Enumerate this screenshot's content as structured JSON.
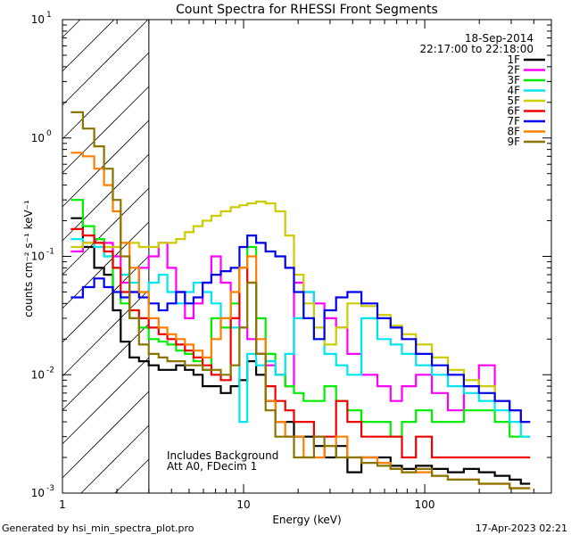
{
  "chart_data": {
    "type": "line",
    "title": "Count Spectra for RHESSI Front Segments",
    "xlabel": "Energy (keV)",
    "ylabel": "counts cm⁻² s⁻¹ keV⁻¹",
    "xscale": "log",
    "yscale": "log",
    "xlim": [
      1,
      500
    ],
    "ylim": [
      0.001,
      10
    ],
    "xticks": [
      {
        "value": 1,
        "label": "1"
      },
      {
        "value": 10,
        "label": "10"
      },
      {
        "value": 100,
        "label": "100"
      }
    ],
    "yticks": [
      {
        "value": 0.001,
        "base": "10",
        "exp": "-3"
      },
      {
        "value": 0.01,
        "base": "10",
        "exp": "-2"
      },
      {
        "value": 0.1,
        "base": "10",
        "exp": "-1"
      },
      {
        "value": 1,
        "base": "10",
        "exp": "0"
      },
      {
        "value": 10,
        "base": "10",
        "exp": "1"
      }
    ],
    "shaded_region": {
      "x": [
        1,
        3
      ]
    },
    "date": "18-Sep-2014",
    "time_range": "22:17:00 to 22:18:00",
    "legend_position": "top-right",
    "annotations": [
      "Includes Background",
      "Att A0, FDecim 1"
    ],
    "series": [
      {
        "name": "1F",
        "color": "#000000",
        "x": [
          1.2,
          1.4,
          1.6,
          1.8,
          2.0,
          2.2,
          2.5,
          2.8,
          3.2,
          3.6,
          4.0,
          4.5,
          5.0,
          5.6,
          6.3,
          7.0,
          8.0,
          9.0,
          10.0,
          11.0,
          12.5,
          14,
          16,
          18,
          20,
          23,
          26,
          30,
          35,
          40,
          50,
          60,
          70,
          80,
          100,
          120,
          150,
          180,
          220,
          270,
          320,
          360
        ],
        "values": [
          0.21,
          0.12,
          0.08,
          0.07,
          0.035,
          0.019,
          0.014,
          0.013,
          0.012,
          0.011,
          0.011,
          0.012,
          0.011,
          0.01,
          0.008,
          0.008,
          0.007,
          0.008,
          0.009,
          0.013,
          0.01,
          0.006,
          0.004,
          0.004,
          0.003,
          0.003,
          0.0025,
          0.002,
          0.0025,
          0.0015,
          0.002,
          0.002,
          0.0017,
          0.0016,
          0.0017,
          0.0016,
          0.0015,
          0.0016,
          0.0015,
          0.0014,
          0.0013,
          0.0012
        ]
      },
      {
        "name": "2F",
        "color": "#ff00ff",
        "x": [
          1.2,
          1.4,
          1.6,
          1.8,
          2.0,
          2.2,
          2.5,
          2.8,
          3.2,
          3.6,
          4.0,
          4.5,
          5.0,
          5.6,
          6.3,
          7.0,
          8.0,
          9.0,
          10.0,
          11.0,
          12.5,
          14,
          16,
          18,
          20,
          23,
          26,
          30,
          35,
          40,
          50,
          60,
          70,
          80,
          100,
          120,
          150,
          180,
          220,
          270,
          320,
          360
        ],
        "values": [
          0.11,
          0.13,
          0.14,
          0.13,
          0.1,
          0.06,
          0.05,
          0.08,
          0.1,
          0.13,
          0.08,
          0.05,
          0.03,
          0.04,
          0.06,
          0.1,
          0.06,
          0.03,
          0.025,
          0.02,
          0.015,
          0.012,
          0.01,
          0.008,
          0.06,
          0.05,
          0.04,
          0.03,
          0.025,
          0.015,
          0.01,
          0.008,
          0.006,
          0.008,
          0.01,
          0.007,
          0.005,
          0.008,
          0.012,
          0.006,
          0.005,
          0.004
        ]
      },
      {
        "name": "3F",
        "color": "#00ee00",
        "x": [
          1.2,
          1.4,
          1.6,
          1.8,
          2.0,
          2.2,
          2.5,
          2.8,
          3.2,
          3.6,
          4.0,
          4.5,
          5.0,
          5.6,
          6.3,
          7.0,
          8.0,
          9.0,
          10.0,
          11.0,
          12.5,
          14,
          16,
          18,
          20,
          23,
          26,
          30,
          35,
          40,
          50,
          60,
          70,
          80,
          100,
          120,
          150,
          180,
          220,
          270,
          320,
          360
        ],
        "values": [
          0.3,
          0.18,
          0.14,
          0.1,
          0.05,
          0.04,
          0.03,
          0.025,
          0.02,
          0.019,
          0.018,
          0.016,
          0.015,
          0.013,
          0.011,
          0.03,
          0.025,
          0.04,
          0.08,
          0.12,
          0.03,
          0.015,
          0.01,
          0.008,
          0.007,
          0.006,
          0.006,
          0.008,
          0.006,
          0.005,
          0.004,
          0.004,
          0.003,
          0.004,
          0.005,
          0.004,
          0.004,
          0.005,
          0.005,
          0.004,
          0.003,
          0.003
        ]
      },
      {
        "name": "4F",
        "color": "#00e5ee",
        "x": [
          1.2,
          1.4,
          1.6,
          1.8,
          2.0,
          2.2,
          2.5,
          2.8,
          3.2,
          3.6,
          4.0,
          4.5,
          5.0,
          5.6,
          6.3,
          7.0,
          8.0,
          9.0,
          10.0,
          11.0,
          12.5,
          14,
          16,
          18,
          20,
          23,
          26,
          30,
          35,
          40,
          50,
          60,
          70,
          80,
          100,
          120,
          150,
          180,
          220,
          270,
          320,
          360
        ],
        "values": [
          0.14,
          0.13,
          0.12,
          0.1,
          0.08,
          0.07,
          0.06,
          0.05,
          0.06,
          0.07,
          0.05,
          0.04,
          0.05,
          0.06,
          0.05,
          0.04,
          0.03,
          0.025,
          0.004,
          0.015,
          0.012,
          0.013,
          0.01,
          0.015,
          0.03,
          0.05,
          0.02,
          0.015,
          0.012,
          0.01,
          0.03,
          0.02,
          0.018,
          0.015,
          0.012,
          0.01,
          0.008,
          0.007,
          0.006,
          0.005,
          0.004,
          0.003
        ]
      },
      {
        "name": "5F",
        "color": "#cccc00",
        "x": [
          1.2,
          1.4,
          1.6,
          1.8,
          2.0,
          2.2,
          2.5,
          2.8,
          3.2,
          3.6,
          4.0,
          4.5,
          5.0,
          5.6,
          6.3,
          7.0,
          8.0,
          9.0,
          10.0,
          11.0,
          12.5,
          14,
          16,
          18,
          20,
          23,
          26,
          30,
          35,
          40,
          50,
          60,
          70,
          80,
          100,
          120,
          150,
          180,
          220,
          270,
          320,
          360
        ],
        "values": [
          0.12,
          0.13,
          0.13,
          0.12,
          0.12,
          0.13,
          0.13,
          0.12,
          0.12,
          0.13,
          0.13,
          0.14,
          0.16,
          0.18,
          0.2,
          0.22,
          0.24,
          0.26,
          0.27,
          0.28,
          0.29,
          0.28,
          0.24,
          0.15,
          0.07,
          0.04,
          0.025,
          0.018,
          0.025,
          0.04,
          0.038,
          0.032,
          0.026,
          0.022,
          0.018,
          0.014,
          0.011,
          0.009,
          0.008,
          0.006,
          0.005,
          0.004
        ]
      },
      {
        "name": "6F",
        "color": "#ee0000",
        "x": [
          1.2,
          1.4,
          1.6,
          1.8,
          2.0,
          2.2,
          2.5,
          2.8,
          3.2,
          3.6,
          4.0,
          4.5,
          5.0,
          5.6,
          6.3,
          7.0,
          8.0,
          9.0,
          10.0,
          11.0,
          12.5,
          14,
          16,
          18,
          20,
          23,
          26,
          30,
          35,
          40,
          50,
          60,
          70,
          80,
          100,
          120,
          150,
          180,
          220,
          270,
          320,
          360
        ],
        "values": [
          0.17,
          0.15,
          0.13,
          0.11,
          0.08,
          0.05,
          0.035,
          0.03,
          0.025,
          0.022,
          0.02,
          0.018,
          0.016,
          0.014,
          0.012,
          0.01,
          0.009,
          0.03,
          0.08,
          0.06,
          0.015,
          0.008,
          0.006,
          0.005,
          0.004,
          0.004,
          0.003,
          0.003,
          0.006,
          0.004,
          0.003,
          0.003,
          0.003,
          0.002,
          0.003,
          0.002,
          0.002,
          0.002,
          0.002,
          0.002,
          0.002,
          0.002
        ]
      },
      {
        "name": "7F",
        "color": "#0000ee",
        "x": [
          1.2,
          1.4,
          1.6,
          1.8,
          2.0,
          2.2,
          2.5,
          2.8,
          3.2,
          3.6,
          4.0,
          4.5,
          5.0,
          5.6,
          6.3,
          7.0,
          8.0,
          9.0,
          10.0,
          11.0,
          12.5,
          14,
          16,
          18,
          20,
          23,
          26,
          30,
          35,
          40,
          50,
          60,
          70,
          80,
          100,
          120,
          150,
          180,
          220,
          270,
          320,
          360
        ],
        "values": [
          0.045,
          0.055,
          0.065,
          0.055,
          0.05,
          0.045,
          0.05,
          0.045,
          0.04,
          0.035,
          0.04,
          0.05,
          0.04,
          0.045,
          0.06,
          0.07,
          0.075,
          0.08,
          0.12,
          0.15,
          0.13,
          0.11,
          0.1,
          0.08,
          0.05,
          0.03,
          0.02,
          0.035,
          0.045,
          0.05,
          0.04,
          0.03,
          0.025,
          0.02,
          0.015,
          0.012,
          0.01,
          0.008,
          0.007,
          0.006,
          0.005,
          0.004
        ]
      },
      {
        "name": "8F",
        "color": "#ff7f00",
        "x": [
          1.2,
          1.4,
          1.6,
          1.8,
          2.0,
          2.2,
          2.5,
          2.8,
          3.2,
          3.6,
          4.0,
          4.5,
          5.0,
          5.6,
          6.3,
          7.0,
          8.0,
          9.0,
          10.0,
          11.0,
          12.5,
          14,
          16,
          18,
          20,
          23,
          26,
          30,
          35,
          40,
          50,
          60,
          70,
          80,
          100,
          120,
          150,
          180,
          220,
          270,
          320,
          360
        ],
        "values": [
          0.75,
          0.7,
          0.55,
          0.4,
          0.24,
          0.13,
          0.08,
          0.05,
          0.03,
          0.025,
          0.022,
          0.02,
          0.018,
          0.016,
          0.014,
          0.02,
          0.03,
          0.05,
          0.08,
          0.1,
          0.02,
          0.006,
          0.004,
          0.003,
          0.003,
          0.002,
          0.002,
          0.0025,
          0.003,
          0.002,
          0.002,
          0.0018,
          0.0016,
          0.0015,
          0.0015,
          0.0014,
          0.0013,
          0.0013,
          0.0012,
          0.0012,
          0.0011,
          0.0011
        ]
      },
      {
        "name": "9F",
        "color": "#8b7500",
        "x": [
          1.2,
          1.4,
          1.6,
          1.8,
          2.0,
          2.2,
          2.5,
          2.8,
          3.2,
          3.6,
          4.0,
          4.5,
          5.0,
          5.6,
          6.3,
          7.0,
          8.0,
          9.0,
          10.0,
          11.0,
          12.5,
          14,
          16,
          18,
          20,
          23,
          26,
          30,
          35,
          40,
          50,
          60,
          70,
          80,
          100,
          120,
          150,
          180,
          220,
          270,
          320,
          360
        ],
        "values": [
          1.65,
          1.2,
          0.85,
          0.55,
          0.3,
          0.1,
          0.03,
          0.018,
          0.015,
          0.014,
          0.013,
          0.013,
          0.012,
          0.012,
          0.011,
          0.011,
          0.01,
          0.012,
          0.025,
          0.06,
          0.015,
          0.005,
          0.003,
          0.003,
          0.002,
          0.002,
          0.003,
          0.0025,
          0.002,
          0.002,
          0.0018,
          0.0017,
          0.0016,
          0.0015,
          0.0016,
          0.0014,
          0.0013,
          0.0013,
          0.0012,
          0.0012,
          0.0011,
          0.0011
        ]
      }
    ]
  },
  "footer": {
    "generator": "Generated by hsi_min_spectra_plot.pro",
    "timestamp": "17-Apr-2023 02:21"
  }
}
